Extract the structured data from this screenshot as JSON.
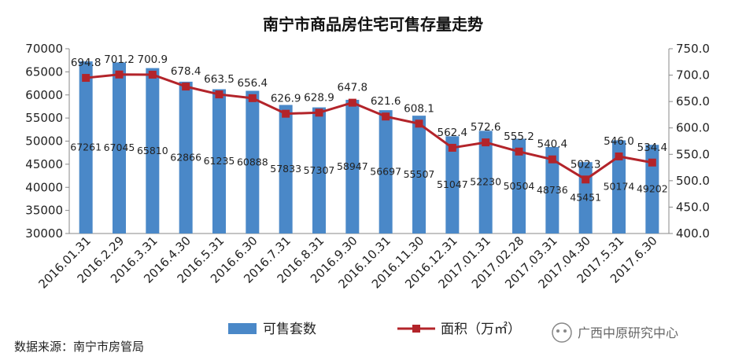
{
  "chart_data": {
    "type": "bar+line",
    "title": "南宁市商品房住宅可售存量走势",
    "categories": [
      "2016.01.31",
      "2016.2.29",
      "2016.3.31",
      "2016.4.30",
      "2016.5.31",
      "2016.6.30",
      "2016.7.31",
      "2016.8.31",
      "2016.9.30",
      "2016.10.31",
      "2016.11.30",
      "2016.12.31",
      "2017.01.31",
      "2017.02.28",
      "2017.03.31",
      "2017.04.30",
      "2017.5.31",
      "2017.6.30"
    ],
    "series": [
      {
        "name": "可售套数",
        "type": "bar",
        "axis": "left",
        "color": "#4a88c8",
        "values": [
          67261,
          67045,
          65810,
          62866,
          61235,
          60888,
          57833,
          57307,
          58947,
          56697,
          55507,
          51047,
          52230,
          50504,
          48736,
          45451,
          50174,
          49202
        ]
      },
      {
        "name": "面积（万㎡）",
        "type": "line",
        "axis": "right",
        "color": "#b3242a",
        "values": [
          694.8,
          701.2,
          700.9,
          678.4,
          663.5,
          656.4,
          626.9,
          628.9,
          647.8,
          621.6,
          608.1,
          562.4,
          572.6,
          555.2,
          540.4,
          502.3,
          546.0,
          534.4
        ]
      }
    ],
    "y_left": {
      "min": 30000,
      "max": 70000,
      "step": 5000
    },
    "y_right": {
      "min": 400.0,
      "max": 750.0,
      "step": 50.0
    },
    "grid": false,
    "legend_position": "bottom"
  },
  "source_note": "数据来源：南宁市房管局",
  "watermark": "广西中原研究中心"
}
